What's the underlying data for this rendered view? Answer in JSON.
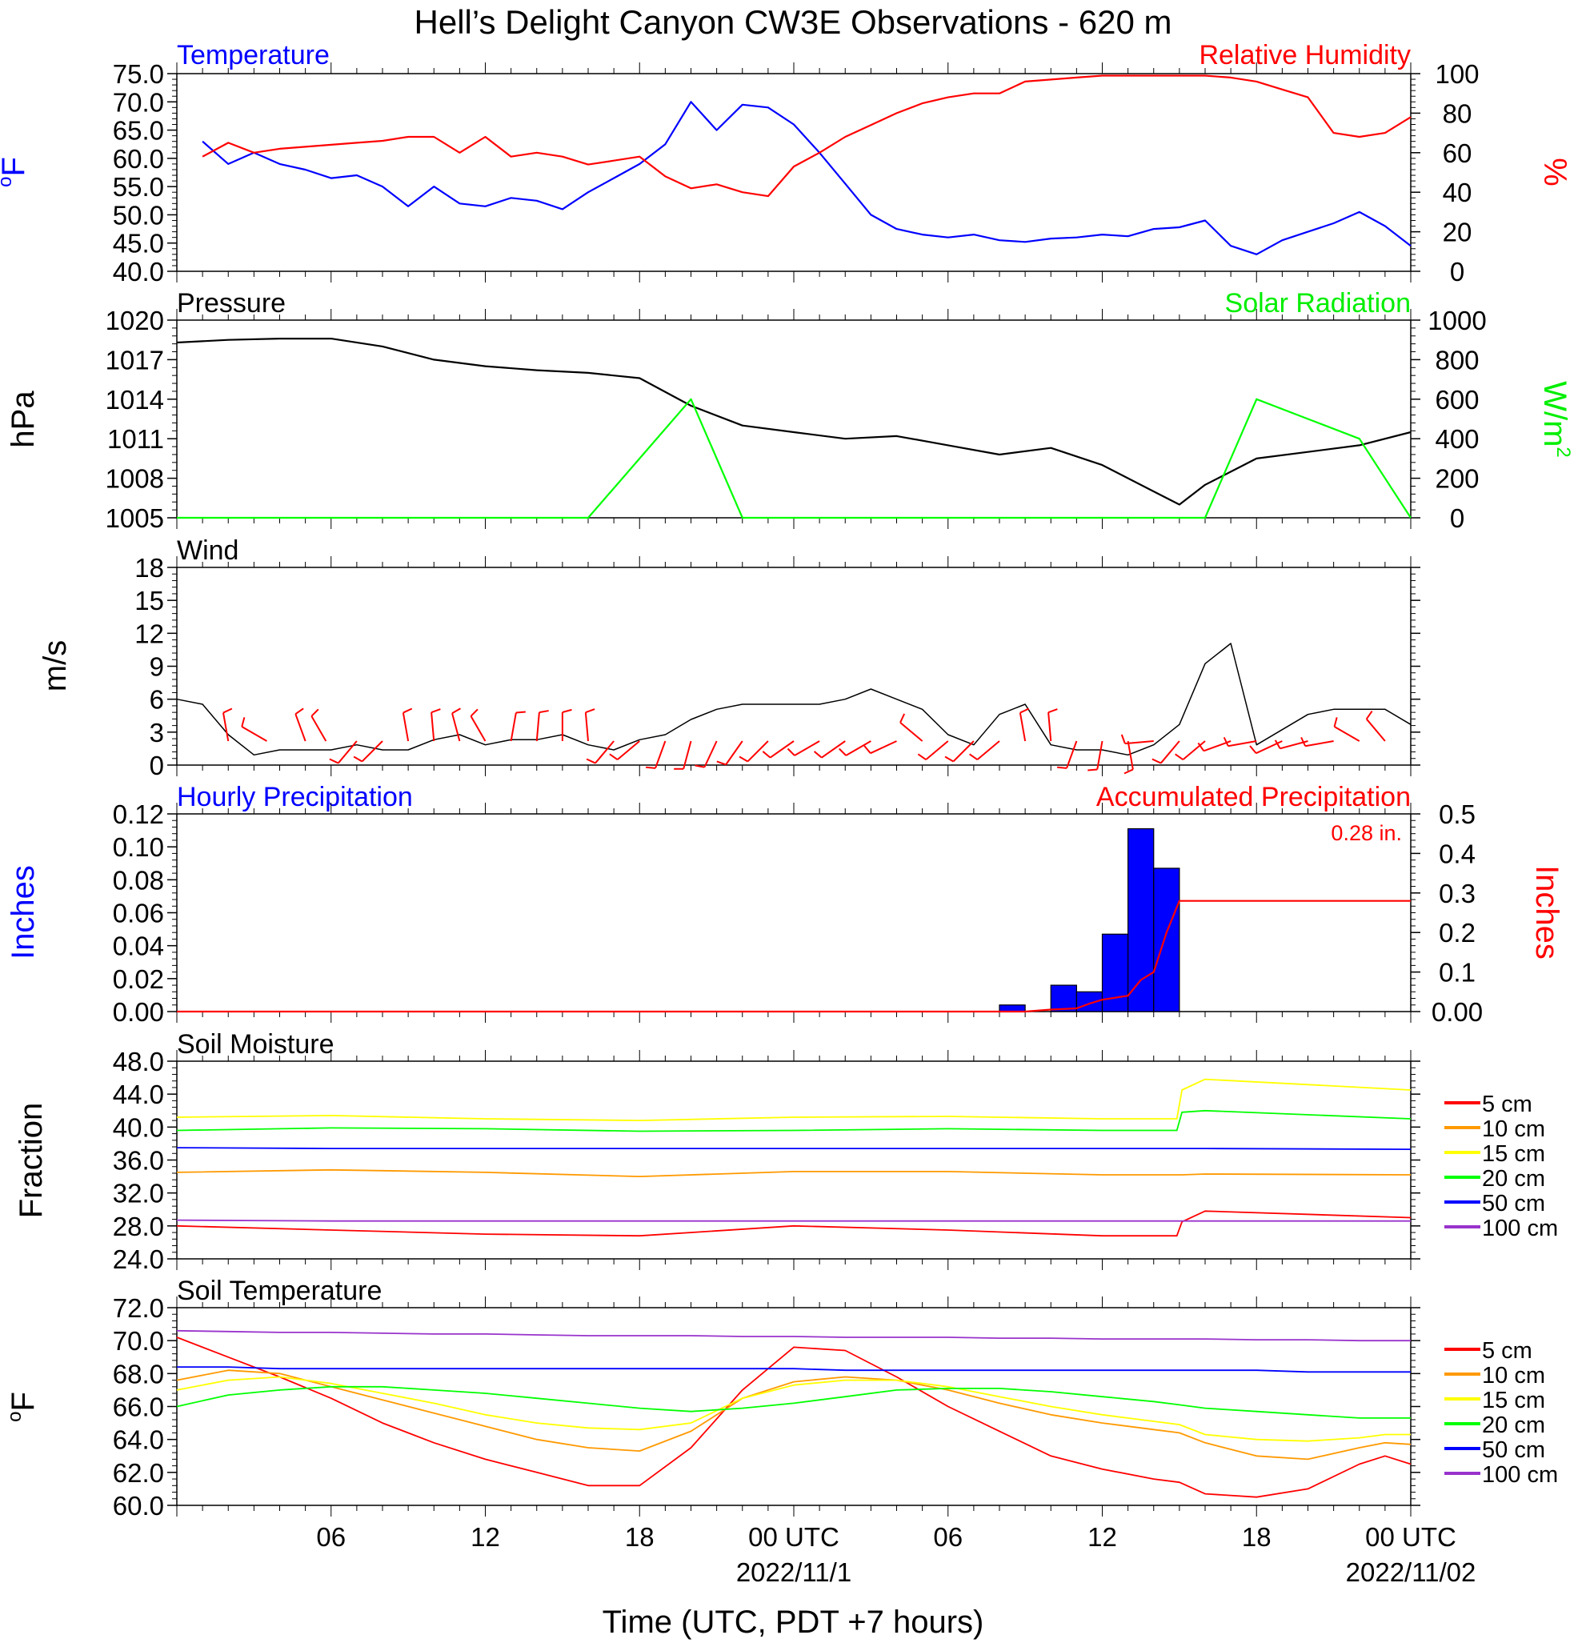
{
  "title": "Hell’s Delight Canyon CW3E Observations - 620 m",
  "xaxis": {
    "label": "Time (UTC, PDT +7 hours)",
    "ticks": [
      {
        "hour": 6,
        "label": "06",
        "date": ""
      },
      {
        "hour": 12,
        "label": "12",
        "date": ""
      },
      {
        "hour": 18,
        "label": "18",
        "date": ""
      },
      {
        "hour": 24,
        "label": "00 UTC",
        "date": "2022/11/1"
      },
      {
        "hour": 30,
        "label": "06",
        "date": ""
      },
      {
        "hour": 36,
        "label": "12",
        "date": ""
      },
      {
        "hour": 42,
        "label": "18",
        "date": ""
      },
      {
        "hour": 48,
        "label": "00 UTC",
        "date": "2022/11/02"
      }
    ]
  },
  "chart_data": [
    {
      "type": "line",
      "panel": "temperature-humidity",
      "left_title": "Temperature",
      "right_title": "Relative Humidity",
      "ylabel_left": "oF",
      "ylabel_right": "%",
      "ylim_left": [
        40,
        75
      ],
      "ylim_right": [
        0,
        100
      ],
      "yticks_left": [
        "75.0",
        "70.0",
        "65.0",
        "60.0",
        "55.0",
        "50.0",
        "45.0",
        "40.0"
      ],
      "yticks_right": [
        "100",
        "80",
        "60",
        "40",
        "20",
        "0"
      ],
      "x": [
        1,
        2,
        3,
        4,
        5,
        6,
        7,
        8,
        9,
        10,
        11,
        12,
        13,
        14,
        15,
        16,
        17,
        18,
        19,
        20,
        21,
        22,
        23,
        24,
        25,
        26,
        27,
        28,
        29,
        30,
        31,
        32,
        33,
        34,
        35,
        36,
        37,
        38,
        39,
        40,
        41,
        42,
        43,
        44,
        45,
        46,
        47,
        48
      ],
      "series": [
        {
          "name": "Temperature",
          "axis": "left",
          "color": "#0000ff",
          "values": [
            63,
            59,
            61,
            59,
            58,
            56.5,
            57,
            55,
            51.5,
            55,
            52,
            51.5,
            53,
            52.5,
            51,
            54,
            56.5,
            59,
            62.5,
            70,
            65,
            69.5,
            69,
            66,
            61,
            55.5,
            50,
            47.5,
            46.5,
            46,
            46.5,
            45.5,
            45.2,
            45.8,
            46,
            46.5,
            46.2,
            47.5,
            47.8,
            49,
            44.5,
            43,
            45.5,
            47,
            48.5,
            50.5,
            48,
            44.5
          ]
        },
        {
          "name": "Relative Humidity",
          "axis": "right",
          "color": "#ff0000",
          "values": [
            58,
            65,
            60,
            62,
            63,
            64,
            65,
            66,
            68,
            68,
            60,
            68,
            58,
            60,
            58,
            54,
            56,
            58,
            48,
            42,
            44,
            40,
            38,
            53,
            60,
            68,
            74,
            80,
            85,
            88,
            90,
            90,
            96,
            97,
            98,
            99,
            99,
            99,
            99,
            99,
            98,
            96,
            92,
            88,
            70,
            68,
            70,
            78
          ]
        }
      ]
    },
    {
      "type": "line",
      "panel": "pressure-solar",
      "left_title": "Pressure",
      "right_title": "Solar Radiation",
      "ylabel_left": "hPa",
      "ylabel_right": "W/m2",
      "ylim_left": [
        1005,
        1020
      ],
      "ylim_right": [
        0,
        1000
      ],
      "yticks_left": [
        "1020",
        "1017",
        "1014",
        "1011",
        "1008",
        "1005"
      ],
      "yticks_right": [
        "1000",
        "800",
        "600",
        "400",
        "200",
        "0"
      ],
      "x": [
        0,
        2,
        4,
        6,
        8,
        10,
        12,
        14,
        16,
        18,
        20,
        22,
        24,
        26,
        28,
        30,
        32,
        34,
        36,
        38,
        39,
        40,
        42,
        44,
        46,
        48
      ],
      "series": [
        {
          "name": "Pressure",
          "axis": "left",
          "color": "#000000",
          "values": [
            1018.3,
            1018.5,
            1018.6,
            1018.6,
            1018.0,
            1017.0,
            1016.5,
            1016.2,
            1016.0,
            1015.6,
            1013.5,
            1012.0,
            1011.5,
            1011.0,
            1011.2,
            1010.5,
            1009.8,
            1010.3,
            1009.0,
            1007.0,
            1006.0,
            1007.5,
            1009.5,
            1010.0,
            1010.5,
            1011.5
          ]
        },
        {
          "name": "Solar Radiation",
          "axis": "right",
          "color": "#00ff00",
          "values": [
            0,
            0,
            0,
            0,
            0,
            0,
            0,
            0,
            0,
            300,
            600,
            0,
            0,
            0,
            0,
            0,
            0,
            0,
            0,
            0,
            0,
            0,
            600,
            500,
            400,
            0
          ]
        }
      ]
    },
    {
      "type": "line",
      "panel": "wind",
      "left_title": "Wind",
      "ylabel_left": "m/s",
      "ylim_left": [
        0,
        19.5
      ],
      "yticks_left": [
        "18",
        "15",
        "12",
        "9",
        "6",
        "3",
        "0"
      ],
      "x": [
        0,
        1,
        2,
        3,
        4,
        5,
        6,
        7,
        8,
        9,
        10,
        11,
        12,
        13,
        14,
        15,
        16,
        17,
        18,
        19,
        20,
        21,
        22,
        23,
        24,
        25,
        26,
        27,
        28,
        29,
        30,
        31,
        32,
        33,
        34,
        35,
        36,
        37,
        38,
        39,
        40,
        41,
        42,
        43,
        44,
        45,
        46,
        47,
        48
      ],
      "series": [
        {
          "name": "Wind Speed",
          "axis": "left",
          "color": "#000000",
          "values": [
            6.5,
            6,
            3,
            1,
            1.5,
            1.5,
            1.5,
            2,
            1.5,
            1.5,
            2.5,
            3,
            2,
            2.5,
            2.5,
            3,
            2,
            1.5,
            2.5,
            3,
            4.5,
            5.5,
            6,
            6,
            6,
            6,
            6.5,
            7.5,
            6.5,
            5.5,
            3,
            2,
            5,
            6,
            2,
            1.5,
            1.5,
            1,
            2,
            4,
            10,
            12,
            2,
            3.5,
            5,
            5.5,
            5.5,
            5.5,
            4
          ]
        }
      ]
    },
    {
      "type": "bar",
      "panel": "precipitation",
      "left_title": "Hourly Precipitation",
      "right_title": "Accumulated Precipitation",
      "annotation": "0.28 in.",
      "ylabel_left": "Inches",
      "ylabel_right": "Inches",
      "ylim_left": [
        0,
        0.12
      ],
      "ylim_right": [
        0,
        0.5
      ],
      "yticks_left": [
        "0.12",
        "0.10",
        "0.08",
        "0.06",
        "0.04",
        "0.02",
        "0.00"
      ],
      "yticks_right": [
        "0.5",
        "0.4",
        "0.3",
        "0.2",
        "0.1",
        "0.00"
      ],
      "series": [
        {
          "name": "Hourly Precipitation",
          "axis": "left",
          "type": "bar",
          "color": "#0000ff",
          "x": [
            33,
            34,
            35,
            36,
            37,
            38,
            39
          ],
          "values": [
            0.004,
            0,
            0.016,
            0.012,
            0.047,
            0.111,
            0.087
          ]
        },
        {
          "name": "Accumulated Precipitation",
          "axis": "right",
          "type": "line",
          "color": "#ff0000",
          "x": [
            0,
            33,
            34,
            35,
            35.5,
            36,
            37,
            37.5,
            38,
            38.5,
            39,
            40,
            48
          ],
          "values": [
            0,
            0,
            0.005,
            0.008,
            0.02,
            0.03,
            0.04,
            0.08,
            0.1,
            0.2,
            0.28,
            0.28,
            0.28
          ]
        }
      ]
    },
    {
      "type": "line",
      "panel": "soil-moisture",
      "left_title": "Soil Moisture",
      "ylabel_left": "Fraction",
      "ylim_left": [
        24,
        48
      ],
      "yticks_left": [
        "48.0",
        "44.0",
        "40.0",
        "36.0",
        "32.0",
        "28.0",
        "24.0"
      ],
      "x": [
        0,
        6,
        12,
        18,
        24,
        30,
        36,
        38.9,
        39.1,
        40,
        48
      ],
      "series": [
        {
          "name": "5 cm",
          "color": "#ff0000",
          "values": [
            28,
            27.5,
            27,
            26.8,
            28,
            27.5,
            26.8,
            26.8,
            28.5,
            29.8,
            29
          ]
        },
        {
          "name": "10 cm",
          "color": "#ff9900",
          "values": [
            34.5,
            34.8,
            34.5,
            34,
            34.6,
            34.6,
            34.2,
            34.2,
            34.2,
            34.3,
            34.2
          ]
        },
        {
          "name": "15 cm",
          "color": "#ffff00",
          "values": [
            41.2,
            41.4,
            41,
            40.8,
            41.2,
            41.3,
            41,
            41,
            44.5,
            45.8,
            44.5
          ]
        },
        {
          "name": "20 cm",
          "color": "#00ff00",
          "values": [
            39.6,
            39.9,
            39.8,
            39.5,
            39.6,
            39.8,
            39.6,
            39.6,
            41.8,
            42,
            41
          ]
        },
        {
          "name": "50 cm",
          "color": "#0000ff",
          "values": [
            37.5,
            37.4,
            37.4,
            37.4,
            37.4,
            37.4,
            37.4,
            37.4,
            37.4,
            37.4,
            37.3
          ]
        },
        {
          "name": "100 cm",
          "color": "#9933cc",
          "values": [
            28.7,
            28.6,
            28.6,
            28.6,
            28.6,
            28.6,
            28.6,
            28.6,
            28.6,
            28.6,
            28.6
          ]
        }
      ]
    },
    {
      "type": "line",
      "panel": "soil-temperature",
      "left_title": "Soil Temperature",
      "ylabel_left": "oF",
      "ylim_left": [
        60,
        72
      ],
      "yticks_left": [
        "72.0",
        "70.0",
        "68.0",
        "66.0",
        "64.0",
        "62.0",
        "60.0"
      ],
      "x": [
        0,
        2,
        4,
        6,
        8,
        10,
        12,
        14,
        16,
        18,
        20,
        22,
        24,
        26,
        28,
        30,
        32,
        34,
        36,
        38,
        39,
        40,
        42,
        44,
        46,
        47,
        48
      ],
      "series": [
        {
          "name": "5 cm",
          "color": "#ff0000",
          "values": [
            70.2,
            69,
            67.8,
            66.5,
            65,
            63.8,
            62.8,
            62,
            61.2,
            61.2,
            63.5,
            67,
            69.6,
            69.4,
            67.8,
            66,
            64.5,
            63,
            62.2,
            61.6,
            61.4,
            60.7,
            60.5,
            61,
            62.5,
            63,
            62.5
          ]
        },
        {
          "name": "10 cm",
          "color": "#ff9900",
          "values": [
            67.6,
            68.2,
            68,
            67.2,
            66.4,
            65.6,
            64.8,
            64,
            63.5,
            63.3,
            64.5,
            66.5,
            67.5,
            67.8,
            67.6,
            67,
            66.2,
            65.5,
            65,
            64.6,
            64.4,
            63.8,
            63,
            62.8,
            63.5,
            63.8,
            63.7
          ]
        },
        {
          "name": "15 cm",
          "color": "#ffff00",
          "values": [
            67,
            67.6,
            67.8,
            67.4,
            66.8,
            66.2,
            65.5,
            65,
            64.7,
            64.6,
            65,
            66.5,
            67.3,
            67.6,
            67.6,
            67.2,
            66.6,
            66,
            65.5,
            65.1,
            64.9,
            64.3,
            64,
            63.9,
            64.1,
            64.3,
            64.3
          ]
        },
        {
          "name": "20 cm",
          "color": "#00ff00",
          "values": [
            66,
            66.7,
            67,
            67.2,
            67.2,
            67,
            66.8,
            66.5,
            66.2,
            65.9,
            65.7,
            65.9,
            66.2,
            66.6,
            67,
            67.1,
            67.1,
            66.9,
            66.6,
            66.3,
            66.1,
            65.9,
            65.7,
            65.5,
            65.3,
            65.3,
            65.3
          ]
        },
        {
          "name": "50 cm",
          "color": "#0000ff",
          "values": [
            68.4,
            68.4,
            68.3,
            68.3,
            68.3,
            68.3,
            68.3,
            68.3,
            68.3,
            68.3,
            68.3,
            68.3,
            68.3,
            68.2,
            68.2,
            68.2,
            68.2,
            68.2,
            68.2,
            68.2,
            68.2,
            68.2,
            68.2,
            68.1,
            68.1,
            68.1,
            68.1
          ]
        },
        {
          "name": "100 cm",
          "color": "#9933cc",
          "values": [
            70.6,
            70.55,
            70.5,
            70.5,
            70.45,
            70.4,
            70.4,
            70.35,
            70.3,
            70.3,
            70.3,
            70.25,
            70.25,
            70.2,
            70.2,
            70.2,
            70.15,
            70.15,
            70.1,
            70.1,
            70.1,
            70.1,
            70.05,
            70.05,
            70,
            70,
            70
          ]
        }
      ]
    }
  ],
  "legend_items": [
    "5 cm",
    "10 cm",
    "15 cm",
    "20 cm",
    "50 cm",
    "100 cm"
  ],
  "legend_colors": [
    "#ff0000",
    "#ff9900",
    "#ffff00",
    "#00ff00",
    "#0000ff",
    "#9933cc"
  ],
  "wind_barbs": [
    {
      "hour": 2.0,
      "dir": 350,
      "speed": 5
    },
    {
      "hour": 3.5,
      "dir": 300,
      "speed": 5
    },
    {
      "hour": 5.0,
      "dir": 340,
      "speed": 5
    },
    {
      "hour": 5.8,
      "dir": 330,
      "speed": 5
    },
    {
      "hour": 7.0,
      "dir": 220,
      "speed": 5
    },
    {
      "hour": 8.0,
      "dir": 225,
      "speed": 5
    },
    {
      "hour": 9.0,
      "dir": 350,
      "speed": 5
    },
    {
      "hour": 10.0,
      "dir": 355,
      "speed": 5
    },
    {
      "hour": 11.0,
      "dir": 345,
      "speed": 5
    },
    {
      "hour": 12.0,
      "dir": 330,
      "speed": 5
    },
    {
      "hour": 13.0,
      "dir": 10,
      "speed": 5
    },
    {
      "hour": 14.0,
      "dir": 5,
      "speed": 5
    },
    {
      "hour": 15.0,
      "dir": 0,
      "speed": 5
    },
    {
      "hour": 16.0,
      "dir": 355,
      "speed": 5
    },
    {
      "hour": 17.0,
      "dir": 220,
      "speed": 5
    },
    {
      "hour": 18.0,
      "dir": 230,
      "speed": 5
    },
    {
      "hour": 19.0,
      "dir": 200,
      "speed": 5
    },
    {
      "hour": 20.0,
      "dir": 195,
      "speed": 5
    },
    {
      "hour": 21.0,
      "dir": 205,
      "speed": 5
    },
    {
      "hour": 22.0,
      "dir": 215,
      "speed": 5
    },
    {
      "hour": 23.0,
      "dir": 225,
      "speed": 5
    },
    {
      "hour": 24.0,
      "dir": 235,
      "speed": 5
    },
    {
      "hour": 25.0,
      "dir": 240,
      "speed": 5
    },
    {
      "hour": 26.0,
      "dir": 235,
      "speed": 5
    },
    {
      "hour": 27.0,
      "dir": 240,
      "speed": 5
    },
    {
      "hour": 28.0,
      "dir": 245,
      "speed": 5
    },
    {
      "hour": 29.0,
      "dir": 310,
      "speed": 5
    },
    {
      "hour": 30.0,
      "dir": 230,
      "speed": 5
    },
    {
      "hour": 31.0,
      "dir": 225,
      "speed": 5
    },
    {
      "hour": 32.0,
      "dir": 230,
      "speed": 5
    },
    {
      "hour": 33.0,
      "dir": 350,
      "speed": 5
    },
    {
      "hour": 34.0,
      "dir": 355,
      "speed": 5
    },
    {
      "hour": 35.0,
      "dir": 200,
      "speed": 5
    },
    {
      "hour": 36.0,
      "dir": 190,
      "speed": 5
    },
    {
      "hour": 37.0,
      "dir": 170,
      "speed": 5
    },
    {
      "hour": 38.0,
      "dir": 265,
      "speed": 10
    },
    {
      "hour": 39.0,
      "dir": 220,
      "speed": 5
    },
    {
      "hour": 40.0,
      "dir": 230,
      "speed": 5
    },
    {
      "hour": 41.0,
      "dir": 250,
      "speed": 5
    },
    {
      "hour": 42.0,
      "dir": 260,
      "speed": 5
    },
    {
      "hour": 43.0,
      "dir": 245,
      "speed": 5
    },
    {
      "hour": 44.0,
      "dir": 255,
      "speed": 5
    },
    {
      "hour": 45.0,
      "dir": 260,
      "speed": 5
    },
    {
      "hour": 46.0,
      "dir": 300,
      "speed": 5
    },
    {
      "hour": 47.0,
      "dir": 320,
      "speed": 5
    }
  ]
}
